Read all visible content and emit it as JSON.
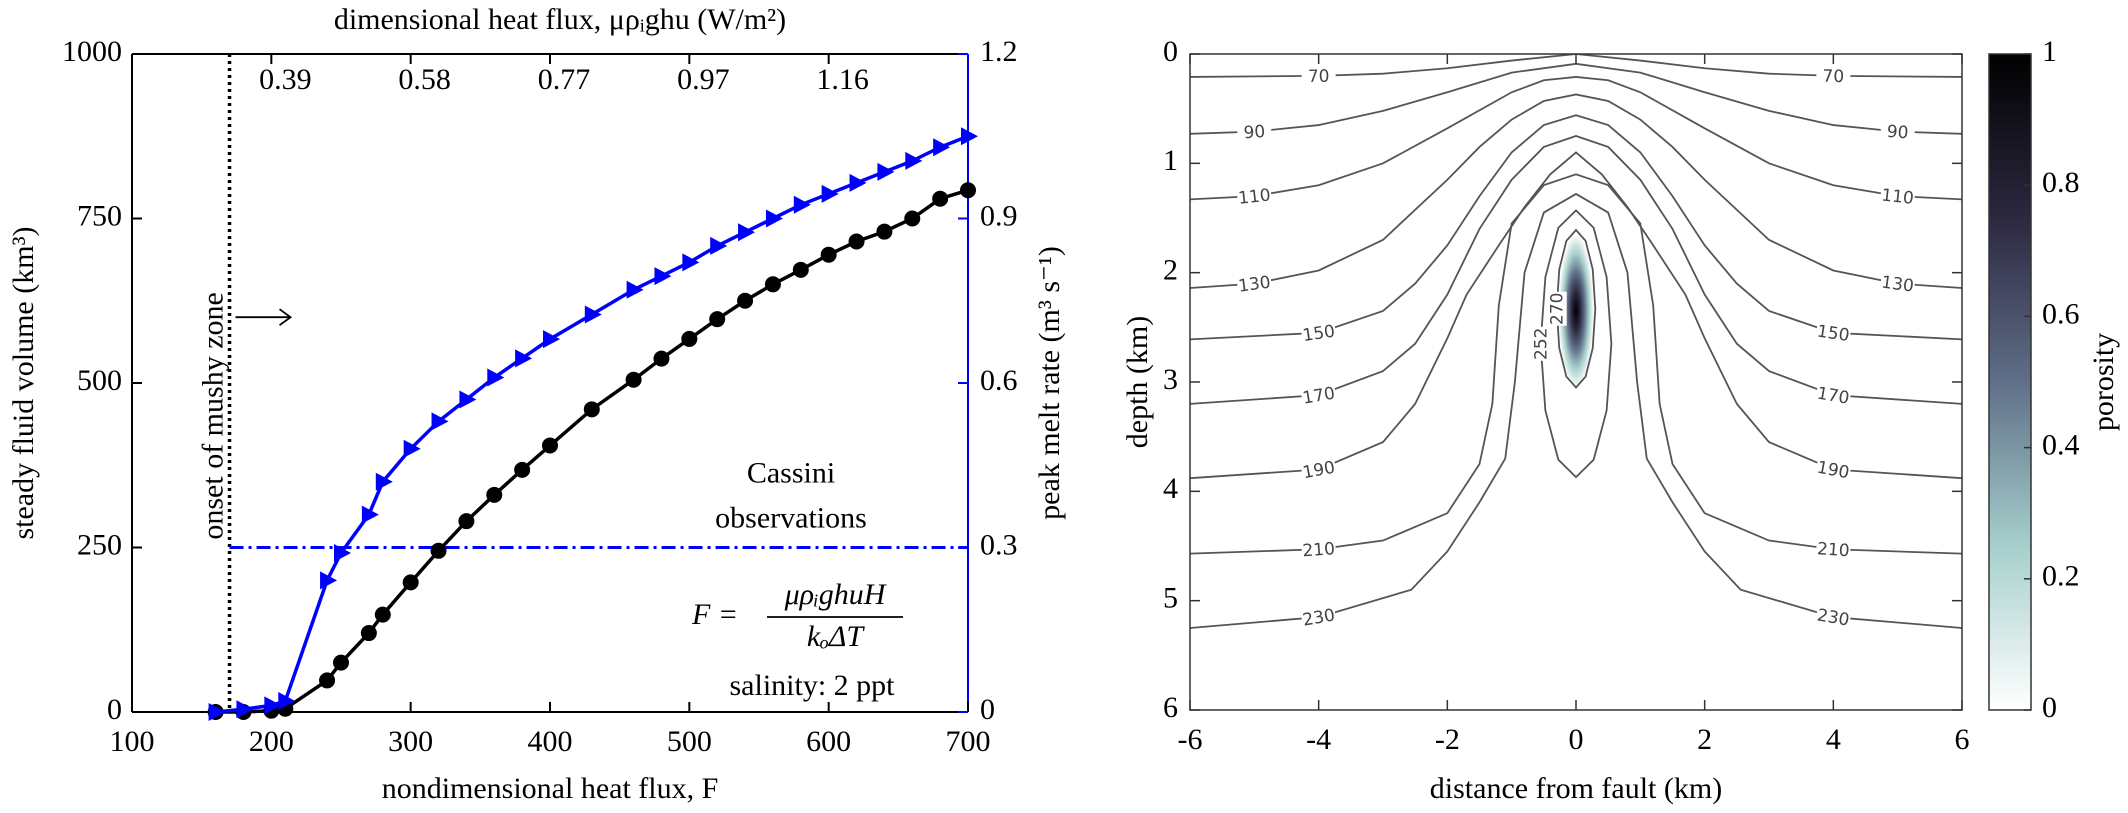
{
  "chart_data": [
    {
      "type": "line",
      "x2label": "dimensional heat flux, μρᵢghu (W/m²)",
      "xlabel": "nondimensional heat flux, F",
      "ylabel": "steady fluid volume (km³)",
      "y2label": "peak melt rate (m³ s⁻¹)",
      "x": [
        160,
        180,
        200,
        210,
        240,
        250,
        270,
        280,
        300,
        320,
        340,
        360,
        380,
        400,
        430,
        460,
        480,
        500,
        520,
        540,
        560,
        580,
        600,
        620,
        640,
        660,
        680,
        700
      ],
      "series": [
        {
          "color": "#000000",
          "marker": "circle",
          "values": [
            0,
            0,
            2,
            5,
            48,
            75,
            120,
            148,
            197,
            245,
            290,
            330,
            368,
            405,
            460,
            505,
            537,
            567,
            597,
            625,
            650,
            672,
            695,
            715,
            730,
            750,
            780,
            793
          ]
        },
        {
          "color": "#0000ff",
          "marker": "triangle",
          "axis": "y2",
          "values": [
            0,
            0.005,
            0.012,
            0.02,
            0.24,
            0.29,
            0.36,
            0.42,
            0.48,
            0.53,
            0.57,
            0.61,
            0.645,
            0.68,
            0.725,
            0.77,
            0.795,
            0.82,
            0.85,
            0.875,
            0.9,
            0.925,
            0.945,
            0.965,
            0.985,
            1.005,
            1.03,
            1.05
          ]
        }
      ],
      "xlim": [
        100,
        700
      ],
      "xticks": [
        100,
        200,
        300,
        400,
        500,
        600,
        700
      ],
      "x2ticks": [
        {
          "value": 200,
          "label": "0.39"
        },
        {
          "value": 300,
          "label": "0.58"
        },
        {
          "value": 400,
          "label": "0.77"
        },
        {
          "value": 500,
          "label": "0.97"
        },
        {
          "value": 600,
          "label": "1.16"
        }
      ],
      "ylim": [
        0,
        1000
      ],
      "yticks": [
        0,
        250,
        500,
        750,
        1000
      ],
      "y2lim": [
        0,
        1.2
      ],
      "y2ticks": [
        0,
        0.3,
        0.6,
        0.9,
        1.2
      ],
      "y2color": "#0000ff",
      "vlines": [
        {
          "x": 170,
          "label": "onset of mushy zone",
          "color": "#000000"
        }
      ],
      "hlines": [
        {
          "y": 0.3,
          "axis": "y2",
          "label": [
            "Cassini",
            "observations"
          ],
          "color": "#0000ff"
        }
      ],
      "annotations": {
        "formula": {
          "lhs": "F =",
          "numerator": "μρᵢghuH",
          "denominator": "kₒΔT"
        },
        "salinity": "salinity: 2 ppt"
      }
    },
    {
      "type": "contour",
      "xlabel": "distance from fault (km)",
      "ylabel": "depth (km)",
      "xlim": [
        -6,
        6
      ],
      "xticks": [
        -6,
        -4,
        -2,
        0,
        2,
        4,
        6
      ],
      "ylim": [
        0,
        6
      ],
      "yticks": [
        0,
        1,
        2,
        3,
        4,
        5,
        6
      ],
      "y_reversed": true,
      "line_color": "#555555",
      "contours": [
        {
          "level": 70,
          "x": [
            -6,
            -4,
            -3,
            -2,
            -1,
            0,
            1,
            2,
            3,
            4,
            6
          ],
          "depth": [
            0.21,
            0.2,
            0.18,
            0.13,
            0.06,
            0,
            0.06,
            0.13,
            0.18,
            0.2,
            0.21
          ]
        },
        {
          "level": 90,
          "x": [
            -6,
            -5,
            -4,
            -3,
            -2,
            -1,
            0,
            1,
            2,
            3,
            4,
            5,
            6
          ],
          "depth": [
            0.73,
            0.71,
            0.65,
            0.52,
            0.35,
            0.17,
            0.09,
            0.17,
            0.35,
            0.52,
            0.65,
            0.71,
            0.73
          ]
        },
        {
          "level": 110,
          "x": [
            -6,
            -5,
            -4,
            -3,
            -2,
            -1,
            -0.5,
            0,
            0.5,
            1,
            2,
            3,
            4,
            5,
            6
          ],
          "depth": [
            1.33,
            1.3,
            1.2,
            1.0,
            0.68,
            0.35,
            0.24,
            0.21,
            0.24,
            0.35,
            0.68,
            1.0,
            1.2,
            1.3,
            1.33
          ]
        },
        {
          "level": 130,
          "x": [
            -6,
            -5,
            -4,
            -3,
            -2,
            -1.5,
            -1,
            -0.5,
            0,
            0.5,
            1,
            1.5,
            2,
            3,
            4,
            5,
            6
          ],
          "depth": [
            2.14,
            2.1,
            1.98,
            1.7,
            1.15,
            0.85,
            0.6,
            0.43,
            0.37,
            0.43,
            0.6,
            0.85,
            1.15,
            1.7,
            1.98,
            2.1,
            2.14
          ]
        },
        {
          "level": 150,
          "x": [
            -6,
            -4,
            -3,
            -2.5,
            -2,
            -1.5,
            -1,
            -0.5,
            0,
            0.5,
            1,
            1.5,
            2,
            2.5,
            3,
            4,
            6
          ],
          "depth": [
            2.61,
            2.55,
            2.35,
            2.1,
            1.75,
            1.3,
            0.9,
            0.65,
            0.56,
            0.65,
            0.9,
            1.3,
            1.75,
            2.1,
            2.35,
            2.55,
            2.61
          ]
        },
        {
          "level": 170,
          "x": [
            -6,
            -4,
            -3,
            -2.5,
            -2,
            -1.5,
            -1,
            -0.5,
            0,
            0.5,
            1,
            1.5,
            2,
            2.5,
            3,
            4,
            6
          ],
          "depth": [
            3.2,
            3.12,
            2.9,
            2.65,
            2.2,
            1.6,
            1.15,
            0.85,
            0.75,
            0.85,
            1.15,
            1.6,
            2.2,
            2.65,
            2.9,
            3.12,
            3.2
          ]
        },
        {
          "level": 190,
          "x": [
            -6,
            -4,
            -3,
            -2.5,
            -2,
            -1.7,
            -1.2,
            -0.8,
            -0.4,
            0,
            0.4,
            0.8,
            1.2,
            1.7,
            2,
            2.5,
            3,
            4,
            6
          ],
          "depth": [
            3.88,
            3.8,
            3.55,
            3.2,
            2.6,
            2.2,
            1.75,
            1.4,
            1.1,
            0.9,
            1.1,
            1.4,
            1.75,
            2.2,
            2.6,
            3.2,
            3.55,
            3.8,
            3.88
          ]
        },
        {
          "level": 210,
          "x": [
            -6,
            -4,
            -3,
            -2,
            -1.5,
            -1.3,
            -1.2,
            -1,
            -0.5,
            0,
            0.5,
            1,
            1.2,
            1.3,
            1.5,
            2,
            3,
            4,
            6
          ],
          "depth": [
            4.57,
            4.53,
            4.45,
            4.2,
            3.75,
            3.2,
            2.3,
            1.55,
            1.2,
            1.1,
            1.2,
            1.55,
            2.3,
            3.2,
            3.75,
            4.2,
            4.45,
            4.53,
            4.57
          ]
        },
        {
          "level": 230,
          "x": [
            -6,
            -4,
            -2.56,
            -2,
            -1.5,
            -1.1,
            -0.95,
            -0.8,
            -0.5,
            0,
            0.5,
            0.8,
            0.95,
            1.1,
            1.5,
            2,
            2.56,
            4,
            6
          ],
          "depth": [
            5.25,
            5.15,
            4.9,
            4.55,
            4.1,
            3.7,
            3.0,
            2.0,
            1.45,
            1.28,
            1.45,
            2.0,
            3.0,
            3.7,
            4.1,
            4.55,
            4.9,
            5.15,
            5.25
          ]
        },
        {
          "level": 252,
          "closed": true,
          "x": [
            0,
            0.275,
            0.476,
            0.55,
            0.476,
            0.275,
            0,
            -0.275,
            -0.476,
            -0.55,
            -0.476,
            -0.275
          ],
          "depth": [
            1.43,
            1.59,
            2.04,
            2.65,
            3.26,
            3.71,
            3.87,
            3.71,
            3.26,
            2.65,
            2.04,
            1.59
          ]
        },
        {
          "level": 270,
          "closed": true,
          "x": [
            0,
            0.15,
            0.26,
            0.3,
            0.26,
            0.15,
            0,
            -0.15,
            -0.26,
            -0.3,
            -0.26,
            -0.15
          ],
          "depth": [
            1.61,
            1.71,
            1.97,
            2.33,
            2.69,
            2.95,
            3.05,
            2.95,
            2.69,
            2.33,
            1.97,
            1.71
          ]
        }
      ],
      "porosity": {
        "x": 0,
        "depth": 2.35,
        "half_width": 0.27,
        "half_height": 0.7,
        "max": 1
      },
      "colorbar": {
        "label": "porosity",
        "lim": [
          0,
          1
        ],
        "ticks": [
          0,
          0.2,
          0.4,
          0.6,
          0.8,
          1
        ],
        "colors": [
          "#ffffff",
          "#a6cfcc",
          "#5f6f88",
          "#2c2840",
          "#000000"
        ]
      }
    }
  ]
}
